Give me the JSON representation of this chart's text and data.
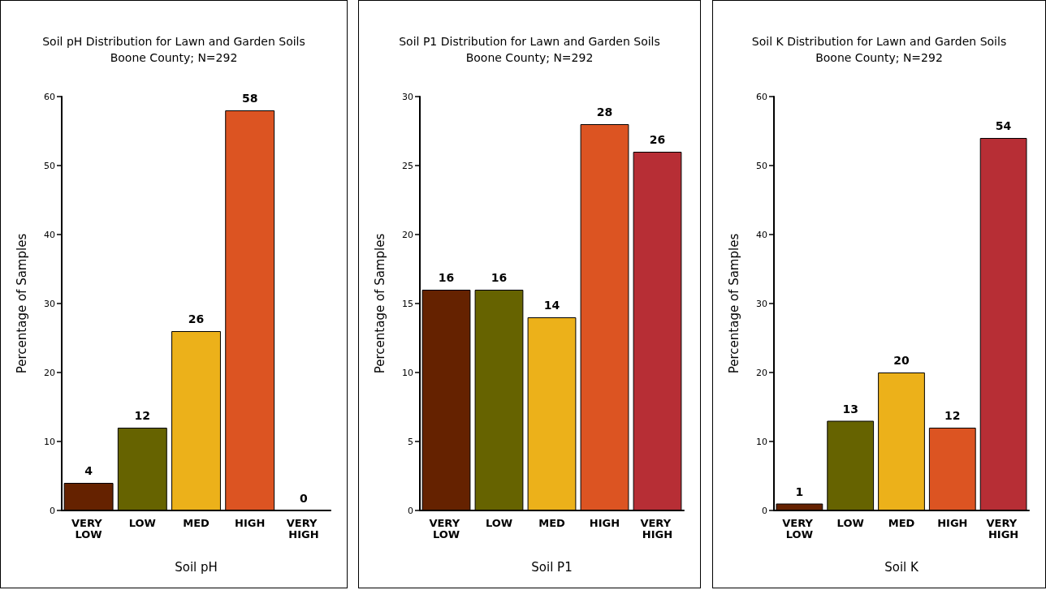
{
  "chart_data": [
    {
      "type": "bar",
      "title": "Soil pH Distribution for Lawn and Garden Soils",
      "subtitle": "Boone County; N=292",
      "xlabel": "Soil pH",
      "ylabel": "Percentage of Samples",
      "categories": [
        "VERY LOW",
        "LOW",
        "MED",
        "HIGH",
        "VERY HIGH"
      ],
      "values": [
        4,
        12,
        26,
        58,
        0
      ],
      "colors": [
        "#652200",
        "#666300",
        "#ecb11a",
        "#dc5422",
        "#b72e35"
      ],
      "ylim": [
        0,
        60
      ],
      "yticks": [
        0,
        10,
        20,
        30,
        40,
        50,
        60
      ],
      "data_labels": true,
      "grid": false
    },
    {
      "type": "bar",
      "title": "Soil P1 Distribution for Lawn and Garden Soils",
      "subtitle": "Boone County; N=292",
      "xlabel": "Soil P1",
      "ylabel": "Percentage of Samples",
      "categories": [
        "VERY LOW",
        "LOW",
        "MED",
        "HIGH",
        "VERY HIGH"
      ],
      "values": [
        16,
        16,
        14,
        28,
        26
      ],
      "colors": [
        "#652200",
        "#666300",
        "#ecb11a",
        "#dc5422",
        "#b72e35"
      ],
      "ylim": [
        0,
        30
      ],
      "yticks": [
        0,
        5,
        10,
        15,
        20,
        25,
        30
      ],
      "data_labels": true,
      "grid": false
    },
    {
      "type": "bar",
      "title": "Soil K Distribution for Lawn and Garden Soils",
      "subtitle": "Boone County; N=292",
      "xlabel": "Soil K",
      "ylabel": "Percentage of Samples",
      "categories": [
        "VERY LOW",
        "LOW",
        "MED",
        "HIGH",
        "VERY HIGH"
      ],
      "values": [
        1,
        13,
        20,
        12,
        54
      ],
      "colors": [
        "#652200",
        "#666300",
        "#ecb11a",
        "#dc5422",
        "#b72e35"
      ],
      "ylim": [
        0,
        60
      ],
      "yticks": [
        0,
        10,
        20,
        30,
        40,
        50,
        60
      ],
      "data_labels": true,
      "grid": false
    }
  ]
}
